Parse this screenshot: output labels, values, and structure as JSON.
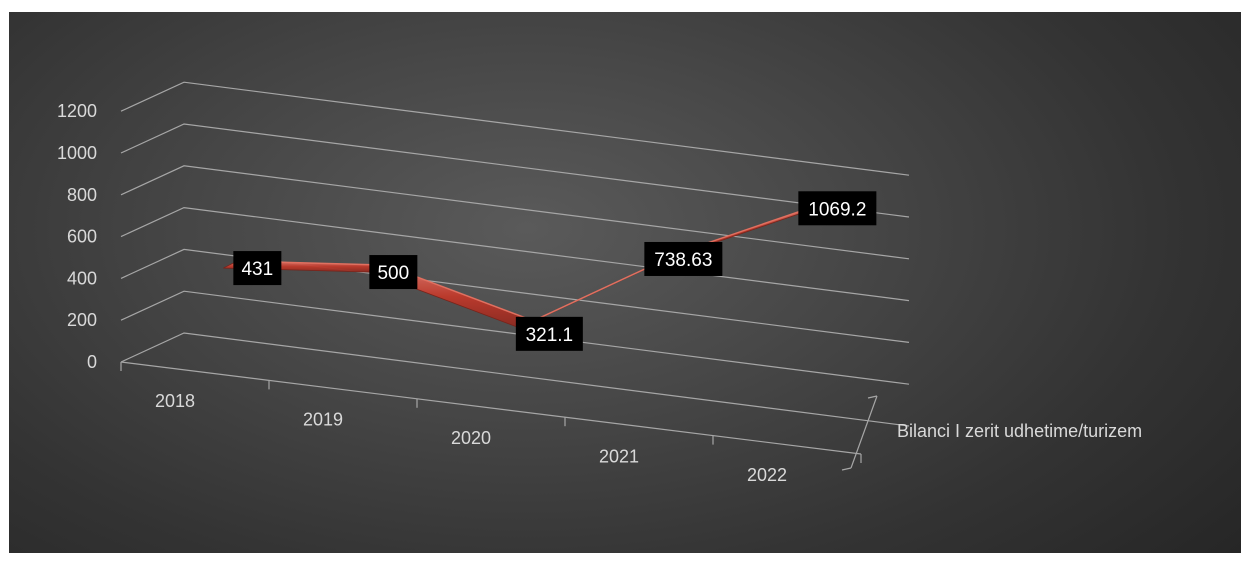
{
  "chart_data": {
    "type": "line",
    "title": "",
    "xlabel": "",
    "ylabel": "",
    "categories": [
      "2018",
      "2019",
      "2020",
      "2021",
      "2022"
    ],
    "series": [
      {
        "name": "Bilanci I zerit udhetime/turizem",
        "values": [
          431,
          500,
          321.1,
          738.63,
          1069.2
        ]
      }
    ],
    "data_labels": [
      "431",
      "500",
      "321.1",
      "738.63",
      "1069.2"
    ],
    "y_ticks": [
      "0",
      "200",
      "400",
      "600",
      "800",
      "1000",
      "1200"
    ],
    "ylim": [
      0,
      1200
    ],
    "grid": true,
    "three_d": true,
    "legend": "none",
    "colors": {
      "background": "#404040",
      "series": "#c0392b",
      "series_light": "#e07060",
      "gridline": "#a6a6a6",
      "text": "#d9d9d9",
      "label_bg": "#000000",
      "label_text": "#ffffff"
    }
  }
}
